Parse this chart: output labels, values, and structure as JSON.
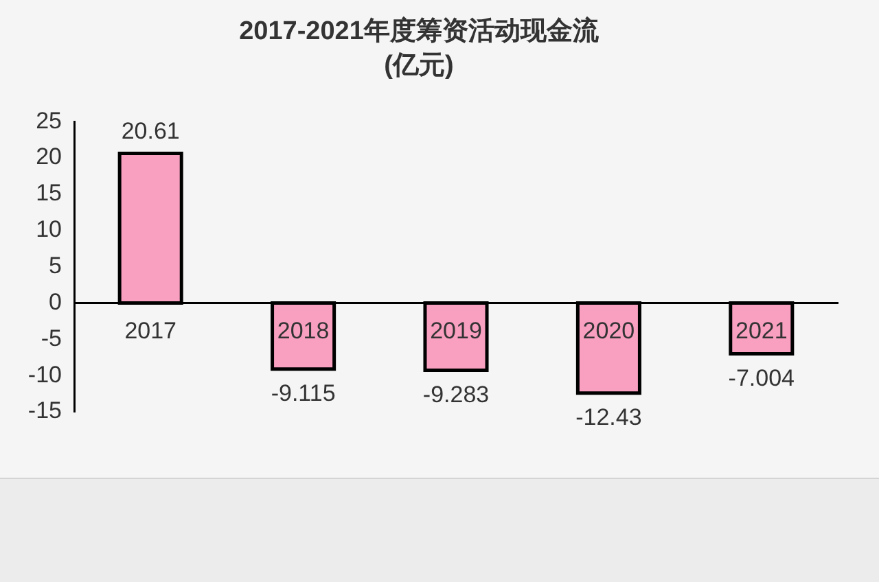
{
  "chart_data": {
    "type": "bar",
    "title": "2017-2021年度筹资活动现金流",
    "subtitle": "(亿元)",
    "categories": [
      "2017",
      "2018",
      "2019",
      "2020",
      "2021"
    ],
    "values": [
      20.61,
      -9.115,
      -9.283,
      -12.43,
      -7.004
    ],
    "color": "#f99fc0",
    "ylim": [
      -15,
      25
    ],
    "yticks": [
      -15,
      -10,
      -5,
      0,
      5,
      10,
      15,
      20,
      25
    ],
    "grid": false,
    "legend": false,
    "data_labels": true
  }
}
